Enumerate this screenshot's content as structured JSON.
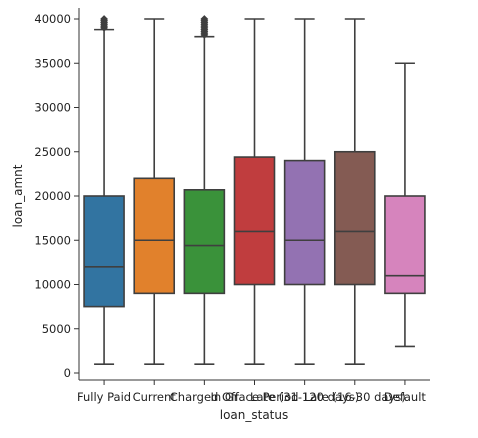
{
  "chart_data": {
    "type": "boxplot",
    "xlabel": "loan_status",
    "ylabel": "loan_amnt",
    "ylim": [
      -700,
      41000
    ],
    "yticks": [
      0,
      5000,
      10000,
      15000,
      20000,
      25000,
      30000,
      35000,
      40000
    ],
    "grid": false,
    "legend": "none",
    "categories": [
      "Fully Paid",
      "Current",
      "Charged Off",
      "In Grace Period",
      "Late (31-120 days)",
      "Late (16-30 days)",
      "Default"
    ],
    "boxes": [
      {
        "category": "Fully Paid",
        "whisker_low": 1000,
        "q1": 7500,
        "median": 12000,
        "q3": 20000,
        "whisker_high": 38800,
        "outliers": [
          39000,
          39200,
          39400,
          39600,
          39800,
          40000
        ],
        "color": "#3274a1"
      },
      {
        "category": "Current",
        "whisker_low": 1000,
        "q1": 9000,
        "median": 15000,
        "q3": 22000,
        "whisker_high": 40000,
        "outliers": [],
        "color": "#e1812c"
      },
      {
        "category": "Charged Off",
        "whisker_low": 1000,
        "q1": 9000,
        "median": 14400,
        "q3": 20700,
        "whisker_high": 38000,
        "outliers": [
          38200,
          38400,
          38600,
          38800,
          39000,
          39200,
          39400,
          39600,
          39800,
          40000
        ],
        "color": "#3a923a"
      },
      {
        "category": "In Grace Period",
        "whisker_low": 1000,
        "q1": 10000,
        "median": 16000,
        "q3": 24400,
        "whisker_high": 40000,
        "outliers": [],
        "color": "#c03d3e"
      },
      {
        "category": "Late (31-120 days)",
        "whisker_low": 1000,
        "q1": 10000,
        "median": 15000,
        "q3": 24000,
        "whisker_high": 40000,
        "outliers": [],
        "color": "#9372b2"
      },
      {
        "category": "Late (16-30 days)",
        "whisker_low": 1000,
        "q1": 10000,
        "median": 16000,
        "q3": 25000,
        "whisker_high": 40000,
        "outliers": [],
        "color": "#845b53"
      },
      {
        "category": "Default",
        "whisker_low": 3000,
        "q1": 9000,
        "median": 11000,
        "q3": 20000,
        "whisker_high": 35000,
        "outliers": [],
        "color": "#d684bd"
      }
    ]
  }
}
